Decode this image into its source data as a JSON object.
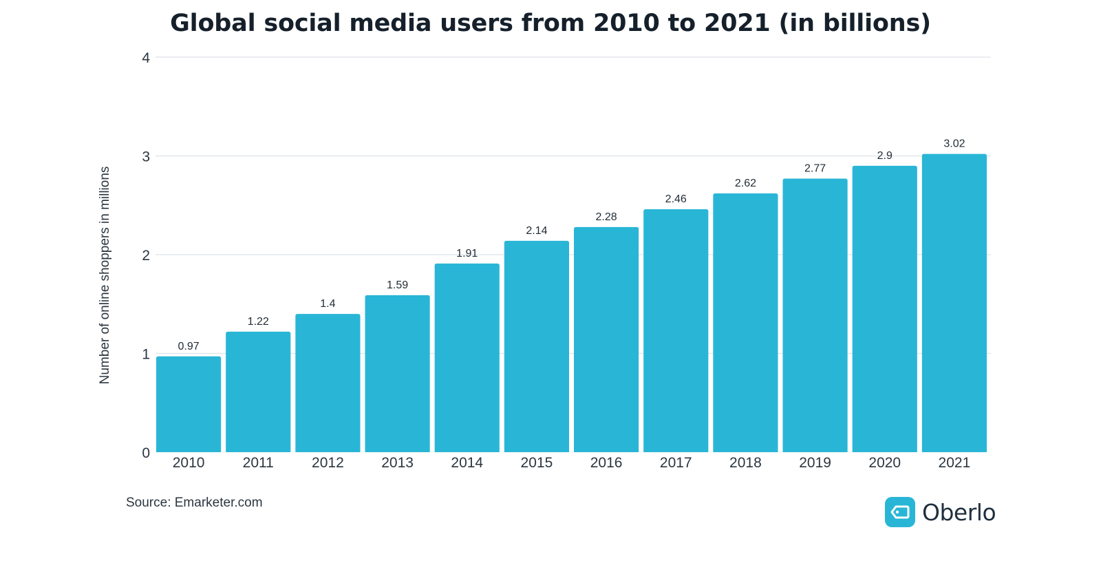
{
  "chart_data": {
    "type": "bar",
    "title": "Global social media users from 2010 to 2021 (in billions)",
    "xlabel": "",
    "ylabel": "Number of online shoppers in millions",
    "categories": [
      "2010",
      "2011",
      "2012",
      "2013",
      "2014",
      "2015",
      "2016",
      "2017",
      "2018",
      "2019",
      "2020",
      "2021"
    ],
    "values": [
      0.97,
      1.22,
      1.4,
      1.59,
      1.91,
      2.14,
      2.28,
      2.46,
      2.62,
      2.77,
      2.9,
      3.02
    ],
    "data_labels": [
      "0.97",
      "1.22",
      "1.4",
      "1.59",
      "1.91",
      "2.14",
      "2.28",
      "2.46",
      "2.62",
      "2.77",
      "2.9",
      "3.02"
    ],
    "ylim": [
      0,
      4
    ],
    "yticks": [
      0,
      1,
      2,
      3,
      4
    ],
    "grid": true,
    "legend": "none",
    "bar_color": "#29b6d6",
    "grid_color": "#e3e7eb"
  },
  "source": "Source: Emarketer.com",
  "brand": {
    "name": "Oberlo",
    "icon": "price-tag-icon",
    "color": "#29b6d6"
  }
}
